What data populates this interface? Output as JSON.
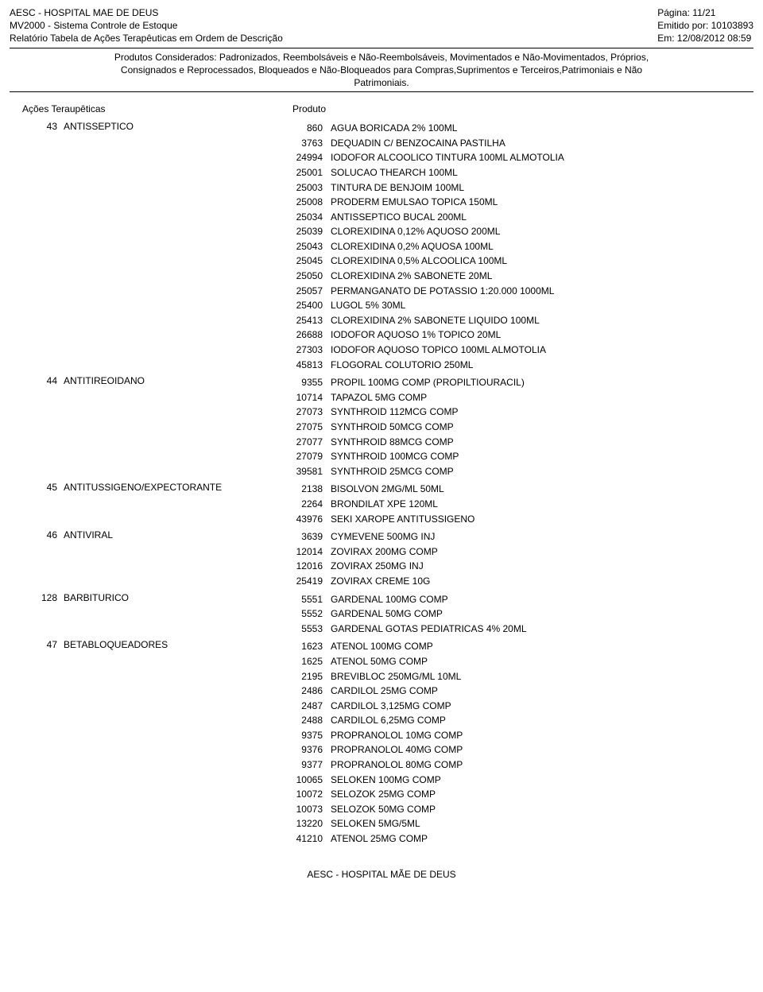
{
  "header": {
    "left_line1": "AESC -  HOSPITAL MAE DE DEUS",
    "left_line2": "MV2000 - Sistema Controle de Estoque",
    "left_line3": "Relatório Tabela de Ações Terapêuticas em Ordem de Descrição",
    "right_line1": "Página: 11/21",
    "right_line2": "Emitido por: 10103893",
    "right_line3": "Em: 12/08/2012 08:59"
  },
  "filter": {
    "line1": "Produtos Considerados: Padronizados, Reembolsáveis e Não-Reembolsáveis, Movimentados e Não-Movimentados, Próprios,",
    "line2": "Consignados e Reprocessados, Bloqueados e Não-Bloqueados para Compras,Suprimentos e Terceiros,Patrimoniais e Não",
    "line3": "Patrimoniais."
  },
  "columns": {
    "actions": "Ações Teraupêticas",
    "product": "Produto"
  },
  "groups": [
    {
      "code": "43",
      "name": "ANTISSEPTICO",
      "products": [
        {
          "code": "860",
          "name": "AGUA BORICADA 2% 100ML"
        },
        {
          "code": "3763",
          "name": "DEQUADIN C/ BENZOCAINA PASTILHA"
        },
        {
          "code": "24994",
          "name": "IODOFOR ALCOOLICO TINTURA 100ML ALMOTOLIA"
        },
        {
          "code": "25001",
          "name": "SOLUCAO THEARCH 100ML"
        },
        {
          "code": "25003",
          "name": "TINTURA DE BENJOIM 100ML"
        },
        {
          "code": "25008",
          "name": "PRODERM  EMULSAO TOPICA 150ML"
        },
        {
          "code": "25034",
          "name": "ANTISSEPTICO BUCAL 200ML"
        },
        {
          "code": "25039",
          "name": "CLOREXIDINA 0,12% AQUOSO 200ML"
        },
        {
          "code": "25043",
          "name": "CLOREXIDINA 0,2% AQUOSA 100ML"
        },
        {
          "code": "25045",
          "name": "CLOREXIDINA 0,5% ALCOOLICA 100ML"
        },
        {
          "code": "25050",
          "name": "CLOREXIDINA 2% SABONETE 20ML"
        },
        {
          "code": "25057",
          "name": "PERMANGANATO DE POTASSIO 1:20.000 1000ML"
        },
        {
          "code": "25400",
          "name": "LUGOL 5% 30ML"
        },
        {
          "code": "25413",
          "name": "CLOREXIDINA 2% SABONETE LIQUIDO 100ML"
        },
        {
          "code": "26688",
          "name": "IODOFOR AQUOSO 1% TOPICO 20ML"
        },
        {
          "code": "27303",
          "name": "IODOFOR AQUOSO TOPICO 100ML ALMOTOLIA"
        },
        {
          "code": "45813",
          "name": "FLOGORAL COLUTORIO 250ML"
        }
      ]
    },
    {
      "code": "44",
      "name": "ANTITIREOIDANO",
      "products": [
        {
          "code": "9355",
          "name": "PROPIL 100MG COMP (PROPILTIOURACIL)"
        },
        {
          "code": "10714",
          "name": "TAPAZOL 5MG COMP"
        },
        {
          "code": "27073",
          "name": "SYNTHROID 112MCG COMP"
        },
        {
          "code": "27075",
          "name": "SYNTHROID 50MCG COMP"
        },
        {
          "code": "27077",
          "name": "SYNTHROID 88MCG COMP"
        },
        {
          "code": "27079",
          "name": "SYNTHROID 100MCG COMP"
        },
        {
          "code": "39581",
          "name": "SYNTHROID 25MCG COMP"
        }
      ]
    },
    {
      "code": "45",
      "name": "ANTITUSSIGENO/EXPECTORANTE",
      "products": [
        {
          "code": "2138",
          "name": "BISOLVON 2MG/ML 50ML"
        },
        {
          "code": "2264",
          "name": "BRONDILAT XPE 120ML"
        },
        {
          "code": "43976",
          "name": "SEKI XAROPE ANTITUSSIGENO"
        }
      ]
    },
    {
      "code": "46",
      "name": "ANTIVIRAL",
      "products": [
        {
          "code": "3639",
          "name": "CYMEVENE 500MG INJ"
        },
        {
          "code": "12014",
          "name": "ZOVIRAX 200MG COMP"
        },
        {
          "code": "12016",
          "name": "ZOVIRAX 250MG INJ"
        },
        {
          "code": "25419",
          "name": "ZOVIRAX CREME 10G"
        }
      ]
    },
    {
      "code": "128",
      "name": "BARBITURICO",
      "products": [
        {
          "code": "5551",
          "name": "GARDENAL 100MG COMP"
        },
        {
          "code": "5552",
          "name": "GARDENAL 50MG COMP"
        },
        {
          "code": "5553",
          "name": "GARDENAL GOTAS PEDIATRICAS 4% 20ML"
        }
      ]
    },
    {
      "code": "47",
      "name": "BETABLOQUEADORES",
      "products": [
        {
          "code": "1623",
          "name": "ATENOL 100MG COMP"
        },
        {
          "code": "1625",
          "name": "ATENOL 50MG COMP"
        },
        {
          "code": "2195",
          "name": "BREVIBLOC 250MG/ML 10ML"
        },
        {
          "code": "2486",
          "name": "CARDILOL 25MG COMP"
        },
        {
          "code": "2487",
          "name": "CARDILOL 3,125MG COMP"
        },
        {
          "code": "2488",
          "name": "CARDILOL 6,25MG COMP"
        },
        {
          "code": "9375",
          "name": "PROPRANOLOL 10MG COMP"
        },
        {
          "code": "9376",
          "name": "PROPRANOLOL 40MG COMP"
        },
        {
          "code": "9377",
          "name": "PROPRANOLOL 80MG COMP"
        },
        {
          "code": "10065",
          "name": "SELOKEN 100MG COMP"
        },
        {
          "code": "10072",
          "name": "SELOZOK 25MG COMP"
        },
        {
          "code": "10073",
          "name": "SELOZOK 50MG COMP"
        },
        {
          "code": "13220",
          "name": "SELOKEN 5MG/5ML"
        },
        {
          "code": "41210",
          "name": "ATENOL 25MG COMP"
        }
      ]
    }
  ],
  "footer": "AESC - HOSPITAL MÃE DE DEUS"
}
